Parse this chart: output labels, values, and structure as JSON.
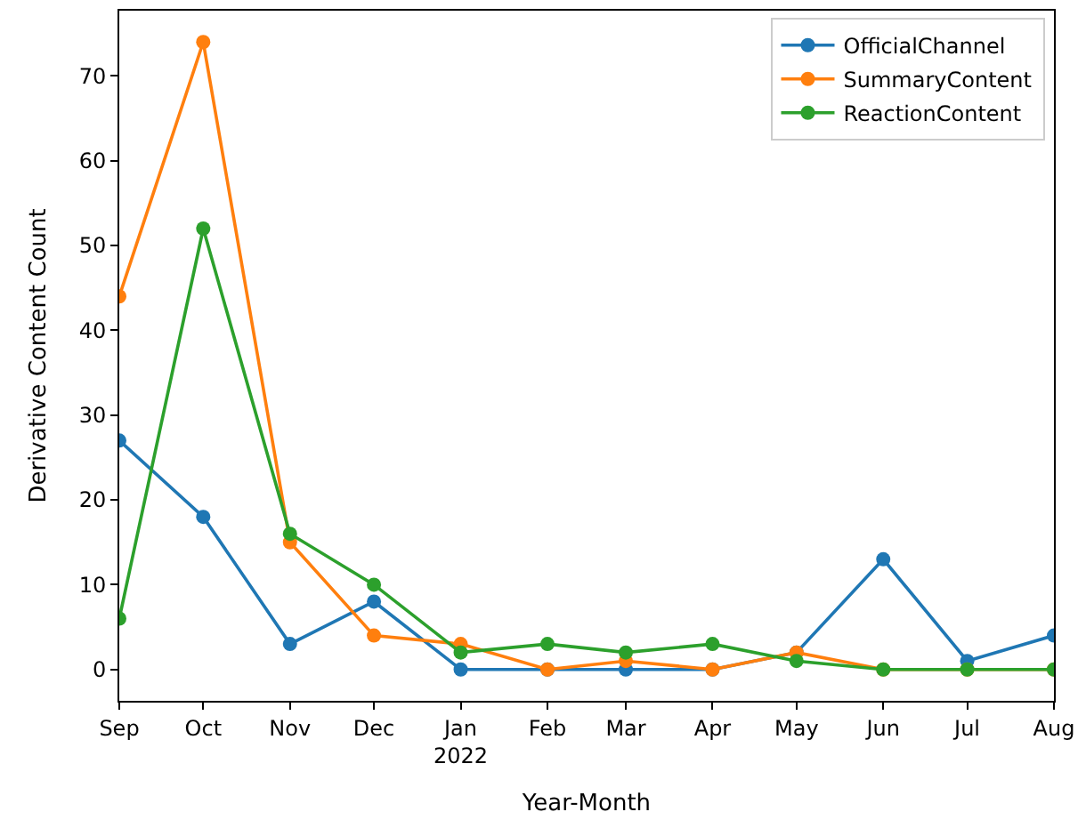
{
  "chart_data": {
    "type": "line",
    "xlabel": "Year-Month",
    "ylabel": "Derivative Content Count",
    "x": [
      "2021-09",
      "2021-10",
      "2021-11",
      "2021-12",
      "2022-01",
      "2022-02",
      "2022-03",
      "2022-04",
      "2022-05",
      "2022-06",
      "2022-07",
      "2022-08"
    ],
    "series": [
      {
        "name": "OfficialChannel",
        "color": "#1f77b4",
        "values": [
          27,
          18,
          3,
          8,
          0,
          0,
          0,
          0,
          2,
          13,
          1,
          4
        ]
      },
      {
        "name": "SummaryContent",
        "color": "#ff7f0e",
        "values": [
          44,
          74,
          15,
          4,
          3,
          0,
          1,
          0,
          2,
          0,
          0,
          0
        ]
      },
      {
        "name": "ReactionContent",
        "color": "#2ca02c",
        "values": [
          6,
          52,
          16,
          10,
          2,
          3,
          2,
          3,
          1,
          0,
          0,
          0
        ]
      }
    ],
    "xlim": [
      "2021-09",
      "2022-08"
    ],
    "xticks": [
      {
        "value": "2021-09",
        "label": "Sep"
      },
      {
        "value": "2021-10",
        "label": "Oct"
      },
      {
        "value": "2021-11",
        "label": "Nov"
      },
      {
        "value": "2021-12",
        "label": "Dec"
      },
      {
        "value": "2022-01",
        "label": "Jan\n2022"
      },
      {
        "value": "2022-02",
        "label": "Feb"
      },
      {
        "value": "2022-03",
        "label": "Mar"
      },
      {
        "value": "2022-04",
        "label": "Apr"
      },
      {
        "value": "2022-05",
        "label": "May"
      },
      {
        "value": "2022-06",
        "label": "Jun"
      },
      {
        "value": "2022-07",
        "label": "Jul"
      },
      {
        "value": "2022-08",
        "label": "Aug"
      }
    ],
    "ylim": [
      -3.7,
      77.7
    ],
    "yticks": [
      0,
      10,
      20,
      30,
      40,
      50,
      60,
      70
    ],
    "legend": "top right",
    "marker": "circle",
    "line_style": "solid"
  }
}
